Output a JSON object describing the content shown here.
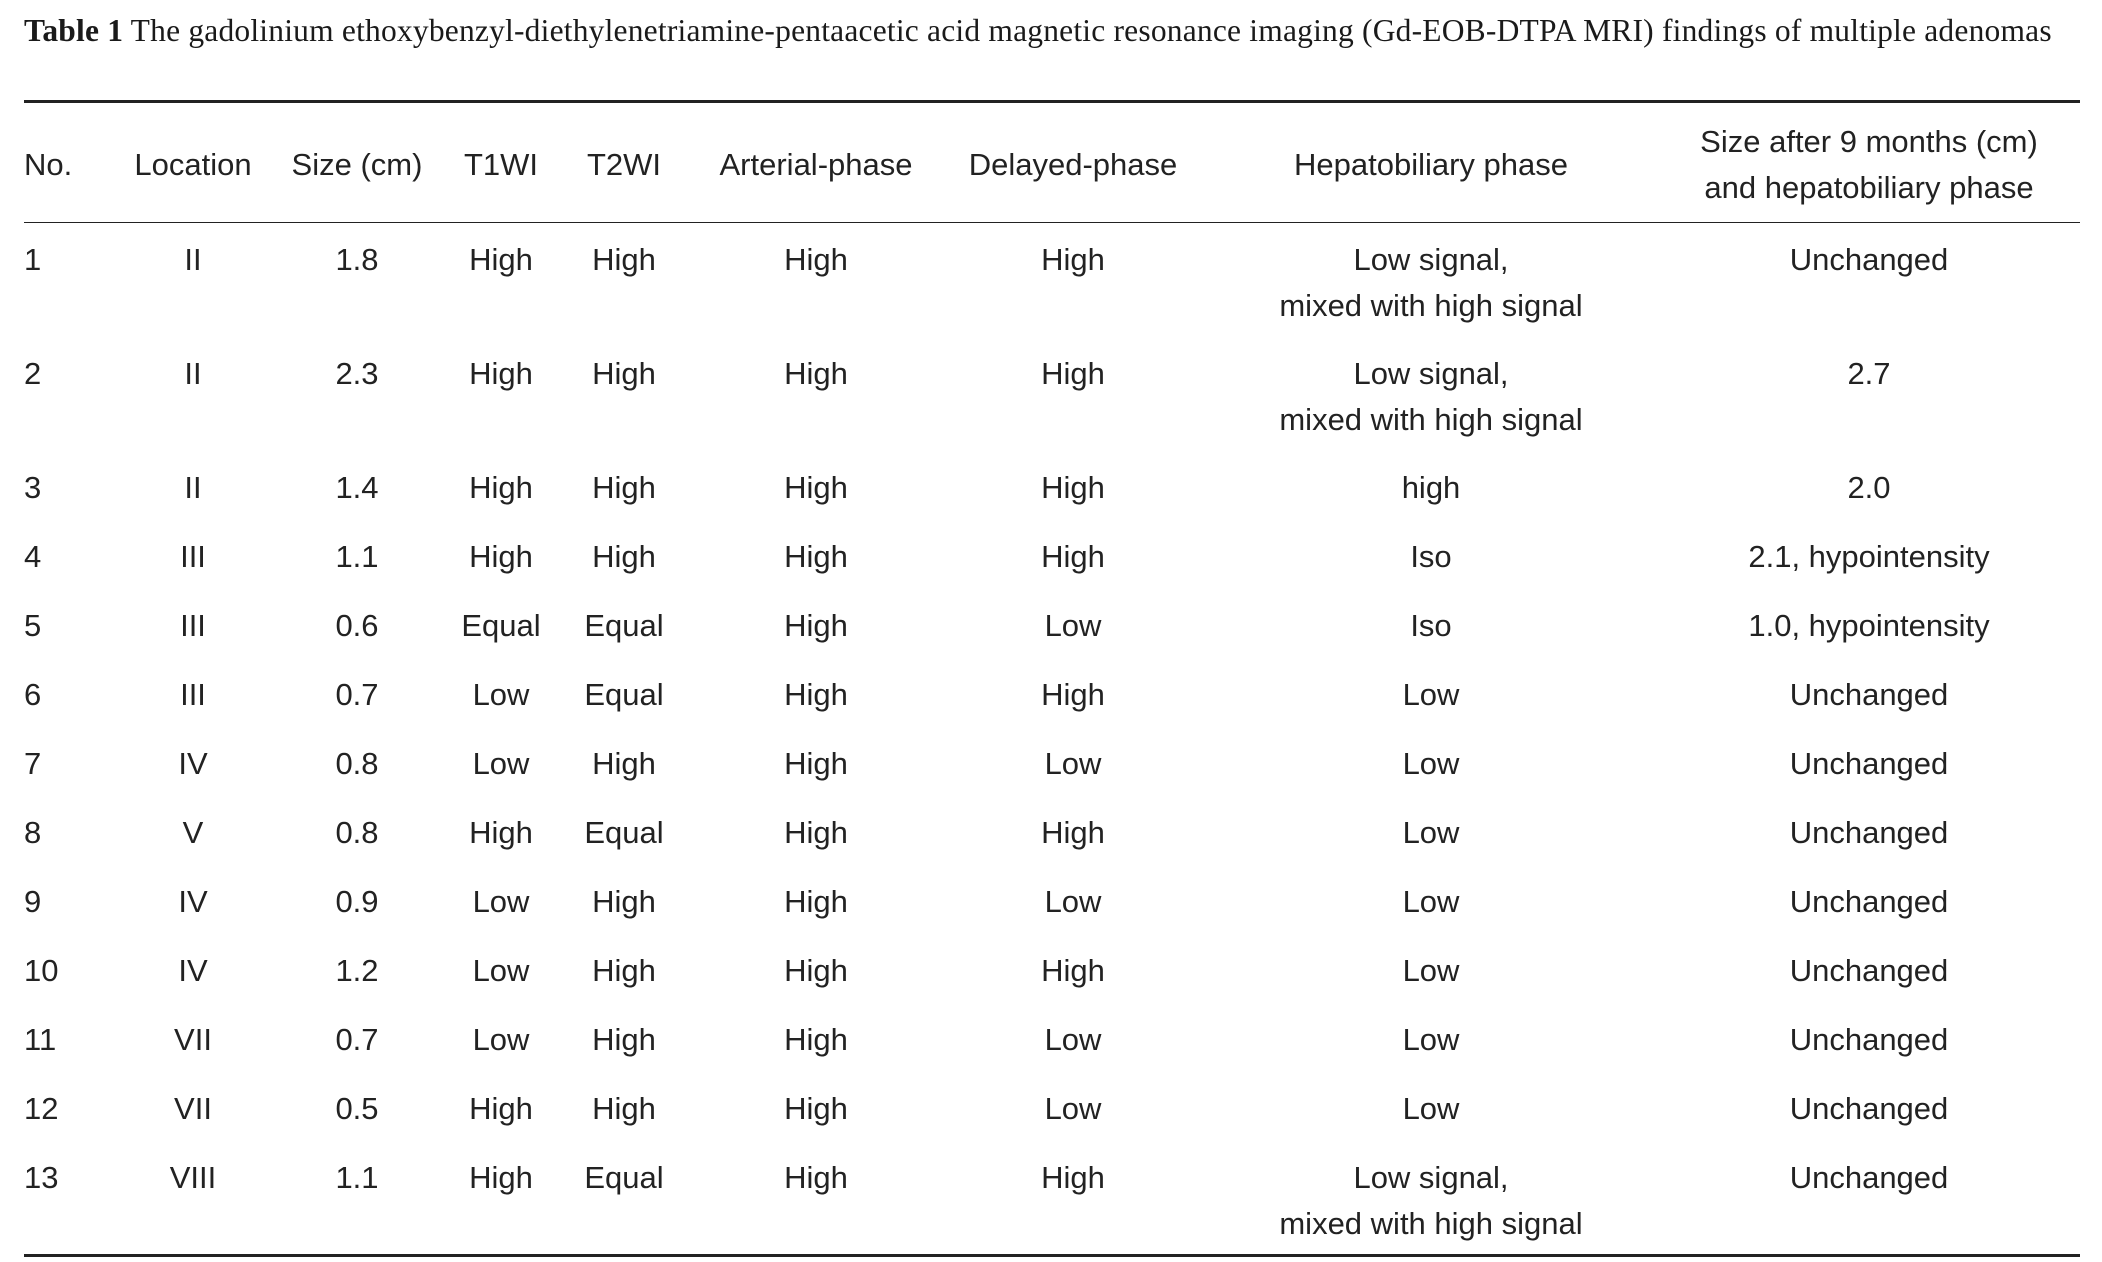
{
  "caption": {
    "label": "Table 1",
    "text": "The gadolinium ethoxybenzyl-diethylenetriamine-pentaacetic acid magnetic resonance imaging (Gd-EOB-DTPA MRI) findings of multiple adenomas"
  },
  "table": {
    "headers": {
      "no": "No.",
      "location": "Location",
      "size": "Size (cm)",
      "t1wi": "T1WI",
      "t2wi": "T2WI",
      "arterial": "Arterial-phase",
      "delayed": "Delayed-phase",
      "hepatobiliary": "Hepatobiliary phase",
      "after_line1": "Size after 9 months (cm)",
      "after_line2": "and hepatobiliary phase"
    },
    "rows": [
      {
        "no": "1",
        "location": "II",
        "size": "1.8",
        "t1wi": "High",
        "t2wi": "High",
        "arterial": "High",
        "delayed": "High",
        "hepatobiliary_l1": "Low signal,",
        "hepatobiliary_l2": "mixed with high signal",
        "after": "Unchanged"
      },
      {
        "no": "2",
        "location": "II",
        "size": "2.3",
        "t1wi": "High",
        "t2wi": "High",
        "arterial": "High",
        "delayed": "High",
        "hepatobiliary_l1": "Low signal,",
        "hepatobiliary_l2": "mixed with high signal",
        "after": "2.7"
      },
      {
        "no": "3",
        "location": "II",
        "size": "1.4",
        "t1wi": "High",
        "t2wi": "High",
        "arterial": "High",
        "delayed": "High",
        "hepatobiliary_l1": "high",
        "hepatobiliary_l2": "",
        "after": "2.0"
      },
      {
        "no": "4",
        "location": "III",
        "size": "1.1",
        "t1wi": "High",
        "t2wi": "High",
        "arterial": "High",
        "delayed": "High",
        "hepatobiliary_l1": "Iso",
        "hepatobiliary_l2": "",
        "after": "2.1, hypointensity"
      },
      {
        "no": "5",
        "location": "III",
        "size": "0.6",
        "t1wi": "Equal",
        "t2wi": "Equal",
        "arterial": "High",
        "delayed": "Low",
        "hepatobiliary_l1": "Iso",
        "hepatobiliary_l2": "",
        "after": "1.0, hypointensity"
      },
      {
        "no": "6",
        "location": "III",
        "size": "0.7",
        "t1wi": "Low",
        "t2wi": "Equal",
        "arterial": "High",
        "delayed": "High",
        "hepatobiliary_l1": "Low",
        "hepatobiliary_l2": "",
        "after": "Unchanged"
      },
      {
        "no": "7",
        "location": "IV",
        "size": "0.8",
        "t1wi": "Low",
        "t2wi": "High",
        "arterial": "High",
        "delayed": "Low",
        "hepatobiliary_l1": "Low",
        "hepatobiliary_l2": "",
        "after": "Unchanged"
      },
      {
        "no": "8",
        "location": "V",
        "size": "0.8",
        "t1wi": "High",
        "t2wi": "Equal",
        "arterial": "High",
        "delayed": "High",
        "hepatobiliary_l1": "Low",
        "hepatobiliary_l2": "",
        "after": "Unchanged"
      },
      {
        "no": "9",
        "location": "IV",
        "size": "0.9",
        "t1wi": "Low",
        "t2wi": "High",
        "arterial": "High",
        "delayed": "Low",
        "hepatobiliary_l1": "Low",
        "hepatobiliary_l2": "",
        "after": "Unchanged"
      },
      {
        "no": "10",
        "location": "IV",
        "size": "1.2",
        "t1wi": "Low",
        "t2wi": "High",
        "arterial": "High",
        "delayed": "High",
        "hepatobiliary_l1": "Low",
        "hepatobiliary_l2": "",
        "after": "Unchanged"
      },
      {
        "no": "11",
        "location": "VII",
        "size": "0.7",
        "t1wi": "Low",
        "t2wi": "High",
        "arterial": "High",
        "delayed": "Low",
        "hepatobiliary_l1": "Low",
        "hepatobiliary_l2": "",
        "after": "Unchanged"
      },
      {
        "no": "12",
        "location": "VII",
        "size": "0.5",
        "t1wi": "High",
        "t2wi": "High",
        "arterial": "High",
        "delayed": "Low",
        "hepatobiliary_l1": "Low",
        "hepatobiliary_l2": "",
        "after": "Unchanged"
      },
      {
        "no": "13",
        "location": "VIII",
        "size": "1.1",
        "t1wi": "High",
        "t2wi": "Equal",
        "arterial": "High",
        "delayed": "High",
        "hepatobiliary_l1": "Low signal,",
        "hepatobiliary_l2": "mixed with high signal",
        "after": "Unchanged"
      }
    ]
  }
}
